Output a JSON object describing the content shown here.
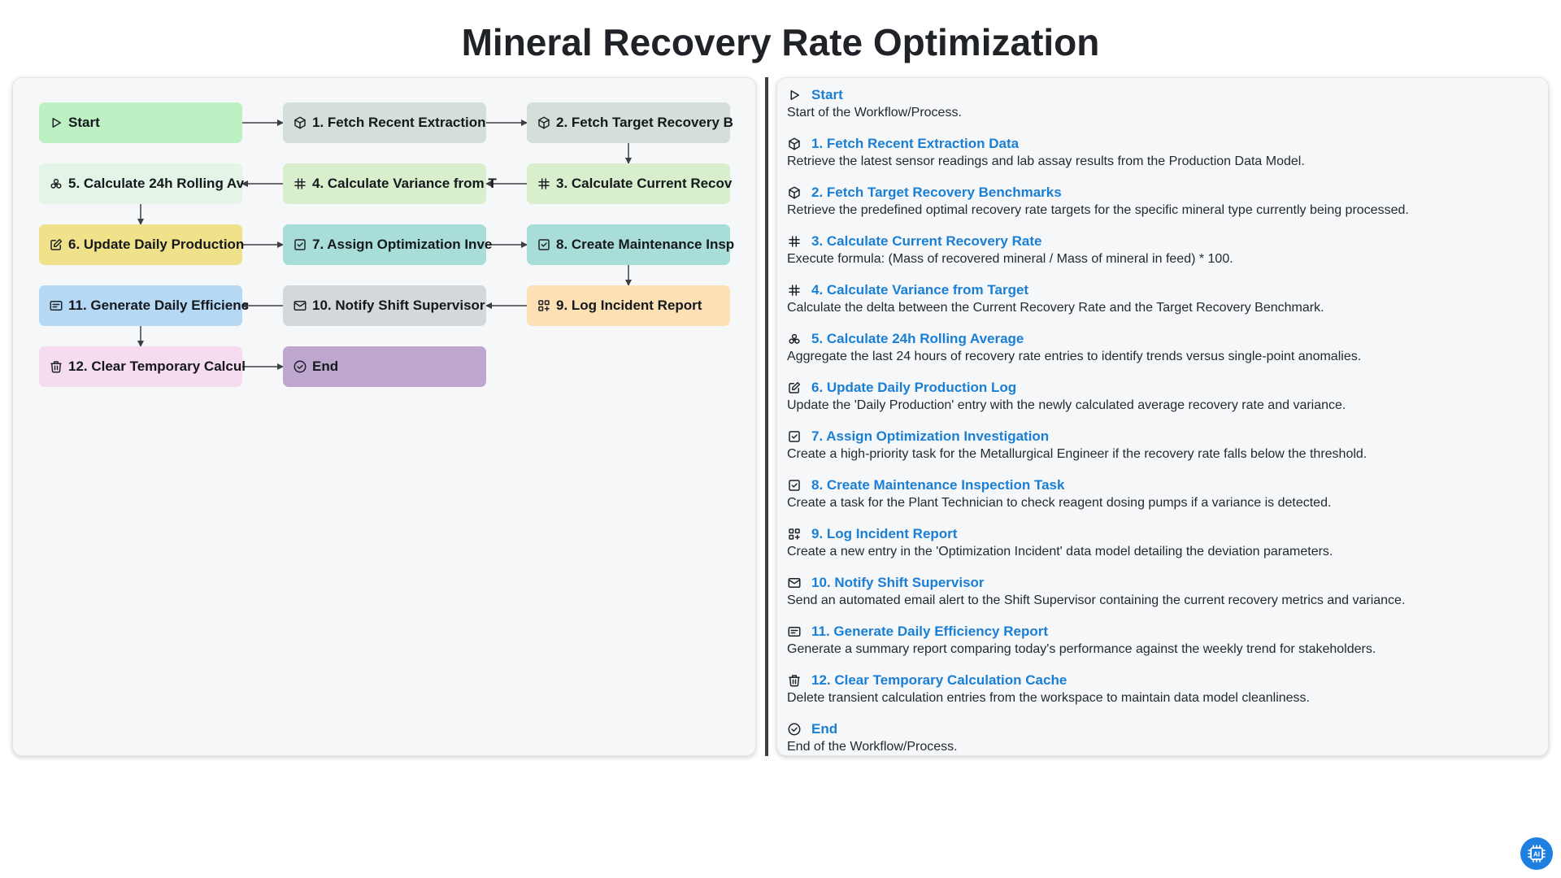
{
  "title": "Mineral Recovery Rate Optimization",
  "nodes": [
    {
      "id": "start",
      "label": "Start",
      "icon": "play-icon",
      "color": "#bdf0c2"
    },
    {
      "id": "n1",
      "label": "1. Fetch Recent Extraction",
      "icon": "cube-icon",
      "color": "#d3dfd8"
    },
    {
      "id": "n2",
      "label": "2. Fetch Target Recovery B",
      "icon": "cube-icon",
      "color": "#d3dfd8"
    },
    {
      "id": "n3",
      "label": "3. Calculate Current Recov",
      "icon": "hash-icon",
      "color": "#d8eecc"
    },
    {
      "id": "n4",
      "label": "4. Calculate Variance from T",
      "icon": "hash-icon",
      "color": "#d8eecc"
    },
    {
      "id": "n5",
      "label": "5. Calculate 24h Rolling Av",
      "icon": "biohazard-icon",
      "color": "#e4f4e7"
    },
    {
      "id": "n6",
      "label": "6. Update Daily Production",
      "icon": "edit-icon",
      "color": "#f0e28a"
    },
    {
      "id": "n7",
      "label": "7. Assign Optimization Inve",
      "icon": "checkbox-icon",
      "color": "#a9ded8"
    },
    {
      "id": "n8",
      "label": "8. Create Maintenance Insp",
      "icon": "checkbox-icon",
      "color": "#a9ded8"
    },
    {
      "id": "n9",
      "label": "9. Log Incident Report",
      "icon": "grid-plus-icon",
      "color": "#fde0b4"
    },
    {
      "id": "n10",
      "label": "10. Notify Shift Supervisor",
      "icon": "mail-icon",
      "color": "#d3d8dc"
    },
    {
      "id": "n11",
      "label": "11. Generate Daily Efficienc",
      "icon": "report-icon",
      "color": "#b5d8f5"
    },
    {
      "id": "n12",
      "label": "12. Clear Temporary Calcul",
      "icon": "trash-icon",
      "color": "#f5dcee"
    },
    {
      "id": "end",
      "label": "End",
      "icon": "check-circle-icon",
      "color": "#bda7cf"
    }
  ],
  "steps": [
    {
      "title": "Start",
      "desc": "Start of the Workflow/Process.",
      "icon": "play-icon"
    },
    {
      "title": "1. Fetch Recent Extraction Data",
      "desc": "Retrieve the latest sensor readings and lab assay results from the Production Data Model.",
      "icon": "cube-icon"
    },
    {
      "title": "2. Fetch Target Recovery Benchmarks",
      "desc": "Retrieve the predefined optimal recovery rate targets for the specific mineral type currently being processed.",
      "icon": "cube-icon"
    },
    {
      "title": "3. Calculate Current Recovery Rate",
      "desc": "Execute formula: (Mass of recovered mineral / Mass of mineral in feed) * 100.",
      "icon": "hash-icon"
    },
    {
      "title": "4. Calculate Variance from Target",
      "desc": "Calculate the delta between the Current Recovery Rate and the Target Recovery Benchmark.",
      "icon": "hash-icon"
    },
    {
      "title": "5. Calculate 24h Rolling Average",
      "desc": "Aggregate the last 24 hours of recovery rate entries to identify trends versus single-point anomalies.",
      "icon": "biohazard-icon"
    },
    {
      "title": "6. Update Daily Production Log",
      "desc": "Update the 'Daily Production' entry with the newly calculated average recovery rate and variance.",
      "icon": "edit-icon"
    },
    {
      "title": "7. Assign Optimization Investigation",
      "desc": "Create a high-priority task for the Metallurgical Engineer if the recovery rate falls below the threshold.",
      "icon": "checkbox-icon"
    },
    {
      "title": "8. Create Maintenance Inspection Task",
      "desc": "Create a task for the Plant Technician to check reagent dosing pumps if a variance is detected.",
      "icon": "checkbox-icon"
    },
    {
      "title": "9. Log Incident Report",
      "desc": "Create a new entry in the 'Optimization Incident' data model detailing the deviation parameters.",
      "icon": "grid-plus-icon"
    },
    {
      "title": "10. Notify Shift Supervisor",
      "desc": "Send an automated email alert to the Shift Supervisor containing the current recovery metrics and variance.",
      "icon": "mail-icon"
    },
    {
      "title": "11. Generate Daily Efficiency Report",
      "desc": "Generate a summary report comparing today's performance against the weekly trend for stakeholders.",
      "icon": "report-icon"
    },
    {
      "title": "12. Clear Temporary Calculation Cache",
      "desc": "Delete transient calculation entries from the workspace to maintain data model cleanliness.",
      "icon": "trash-icon"
    },
    {
      "title": "End",
      "desc": "End of the Workflow/Process.",
      "icon": "check-circle-icon"
    }
  ],
  "ai_badge_label": "AI"
}
